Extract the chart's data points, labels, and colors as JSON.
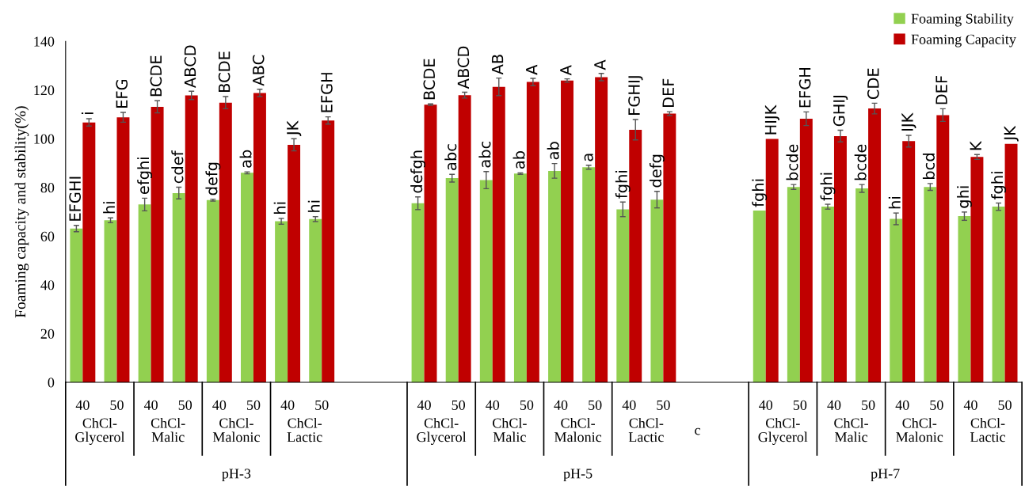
{
  "chart_data": {
    "type": "bar",
    "ylabel": "Foaming capacity and stability(%)",
    "categories": [
      "40",
      "50",
      "40",
      "50",
      "40",
      "50",
      "40",
      "50",
      null,
      null,
      "40",
      "50",
      "40",
      "50",
      "40",
      "50",
      "40",
      "50",
      null,
      null,
      "40",
      "50",
      "40",
      "50",
      "40",
      "50",
      "40",
      "50"
    ],
    "series": [
      {
        "name": "Foaming Stability",
        "color": "#92d050",
        "values": [
          63.1,
          66.5,
          73.0,
          77.7,
          74.8,
          86.0,
          66.1,
          67.0,
          null,
          null,
          73.5,
          83.8,
          83.0,
          85.7,
          86.8,
          88.3,
          71.0,
          75.0,
          null,
          null,
          70.5,
          80.2,
          72.1,
          79.6,
          67.1,
          80.2,
          68.2,
          72.1
        ],
        "errors": [
          1.3,
          1.0,
          2.6,
          2.4,
          0.4,
          0.4,
          1.2,
          1.0,
          null,
          null,
          2.6,
          1.6,
          3.5,
          0.3,
          3.0,
          0.8,
          3.0,
          3.4,
          null,
          null,
          null,
          1.0,
          1.0,
          1.6,
          2.4,
          1.4,
          1.7,
          1.5
        ],
        "value_labels": [
          "EFGHI",
          "hi",
          "efghi",
          "cdef",
          "defg",
          "ab",
          "hi",
          "hi",
          null,
          null,
          "defgh",
          "abc",
          "abc",
          "ab",
          "ab",
          "a",
          "fghi",
          "defg",
          null,
          null,
          "fghi",
          "bcde",
          "fghi",
          "bcde",
          "hi",
          "bcd",
          "ghi",
          "fghi"
        ]
      },
      {
        "name": "Foaming Capacity",
        "color": "#c00000",
        "values": [
          106.7,
          108.8,
          113.1,
          117.8,
          114.8,
          118.8,
          97.5,
          107.5,
          null,
          null,
          114.0,
          117.9,
          121.3,
          123.3,
          123.9,
          125.3,
          103.7,
          110.3,
          null,
          null,
          99.9,
          108.2,
          101.1,
          112.4,
          99.0,
          109.7,
          92.5,
          97.9
        ],
        "errors": [
          1.5,
          2.0,
          2.5,
          1.7,
          2.5,
          1.5,
          2.5,
          1.5,
          null,
          null,
          0.3,
          1.2,
          3.6,
          1.5,
          0.7,
          1.5,
          4.2,
          0.8,
          null,
          null,
          null,
          2.8,
          2.4,
          2.2,
          2.4,
          2.6,
          1.0,
          null
        ],
        "value_labels": [
          "i",
          "EFG",
          "BCDE",
          "ABCD",
          "BCDE",
          "ABC",
          "JK",
          "EFGH",
          null,
          null,
          "BCDE",
          "ABCD",
          "AB",
          "A",
          "A",
          "A",
          "FGHIJ",
          "DEF",
          null,
          null,
          "HIJK",
          "EFGH",
          "GHIJ",
          "CDE",
          "IJK",
          "DEF",
          "K",
          "JK"
        ]
      }
    ],
    "ylim": [
      0,
      140
    ],
    "yticks": [
      0,
      20,
      40,
      60,
      80,
      100,
      120,
      140
    ],
    "grid": false,
    "legend": "top right",
    "annotations": [
      "ChCl-\nGlycerol",
      "ChCl-\nMalic",
      "ChCl-\nMalonic",
      "ChCl-\nLactic",
      "ChCl-\nGlycerol",
      "ChCl-\nMalic",
      "ChCl-\nMalonic",
      "ChCl-\nLactic",
      "ChCl-\nGlycerol",
      "ChCl-\nMalic",
      "ChCl-\nMalonic",
      "ChCl-\nLactic",
      "pH-3",
      "pH-5",
      "pH-7",
      "c"
    ]
  }
}
